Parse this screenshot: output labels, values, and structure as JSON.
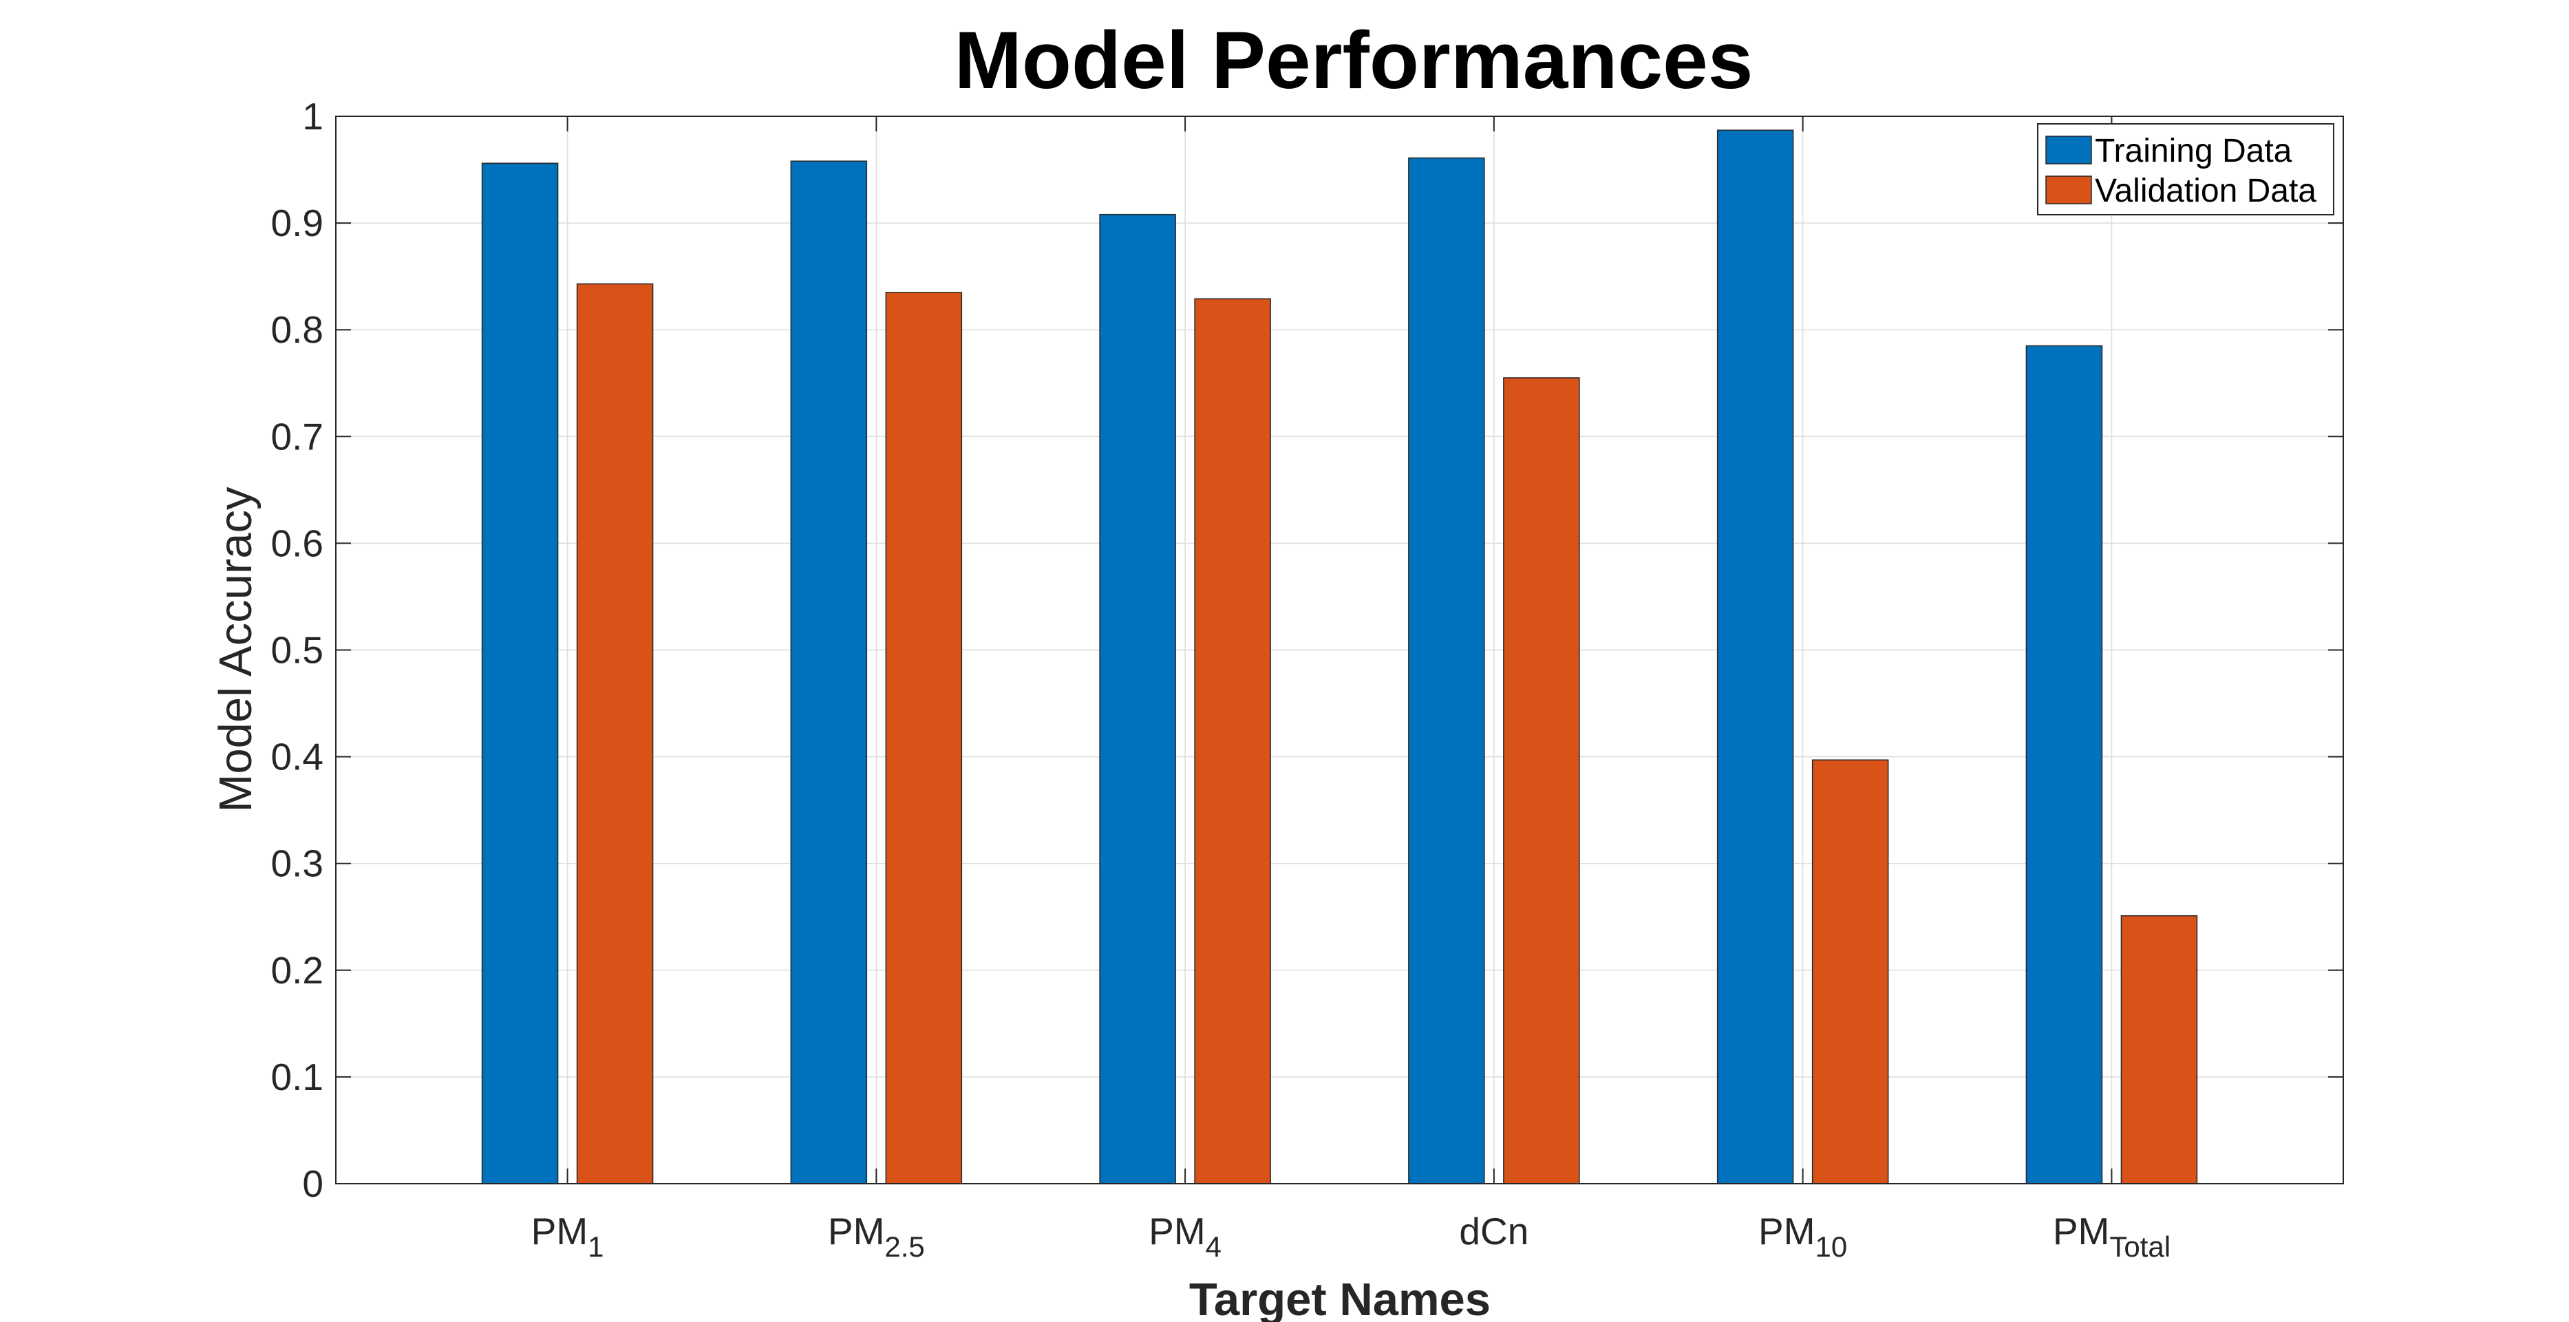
{
  "chart_data": {
    "type": "bar",
    "title": "Model Performances",
    "xlabel": "Target Names",
    "ylabel": "Model Accuracy",
    "categories": [
      {
        "base": "PM",
        "sub": "1"
      },
      {
        "base": "PM",
        "sub": "2.5"
      },
      {
        "base": "PM",
        "sub": "4"
      },
      {
        "base": "dCn",
        "sub": ""
      },
      {
        "base": "PM",
        "sub": "10"
      },
      {
        "base": "PM",
        "sub": "Total"
      }
    ],
    "series": [
      {
        "name": "Training Data",
        "color": "#0072BD",
        "values": [
          0.956,
          0.958,
          0.908,
          0.961,
          0.987,
          0.785
        ]
      },
      {
        "name": "Validation Data",
        "color": "#D95319",
        "values": [
          0.843,
          0.835,
          0.829,
          0.755,
          0.397,
          0.251
        ]
      }
    ],
    "ylim": [
      0,
      1
    ],
    "yticks": [
      "0",
      "0.1",
      "0.2",
      "0.3",
      "0.4",
      "0.5",
      "0.6",
      "0.7",
      "0.8",
      "0.9",
      "1"
    ],
    "grid": true,
    "legend": "top-right"
  }
}
